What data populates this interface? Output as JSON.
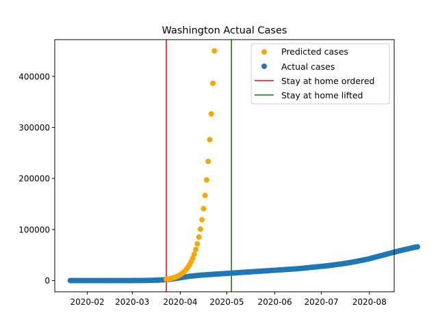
{
  "chart_data": {
    "type": "scatter",
    "title": "Washington Actual Cases",
    "xlabel": "",
    "ylabel": "",
    "x_range": [
      "2020-01-11",
      "2020-08-17"
    ],
    "ylim": [
      -22000,
      472000
    ],
    "x_ticks": [
      "2020-02-01",
      "2020-03-01",
      "2020-04-01",
      "2020-05-01",
      "2020-06-01",
      "2020-07-01",
      "2020-08-01"
    ],
    "x_tick_labels": [
      "2020-02",
      "2020-03",
      "2020-04",
      "2020-05",
      "2020-06",
      "2020-07",
      "2020-08"
    ],
    "y_ticks": [
      0,
      100000,
      200000,
      300000,
      400000
    ],
    "y_tick_labels": [
      "0",
      "100000",
      "200000",
      "300000",
      "400000"
    ],
    "legend": {
      "position": "upper-right",
      "entries": [
        {
          "label": "Predicted cases",
          "kind": "marker",
          "color": "#FFA500"
        },
        {
          "label": "Actual cases",
          "kind": "marker",
          "color": "#1F77B4"
        },
        {
          "label": "Stay at home ordered",
          "kind": "line",
          "color": "#FF0000"
        },
        {
          "label": "Stay at home lifted",
          "kind": "line",
          "color": "#008000"
        }
      ]
    },
    "vlines": [
      {
        "name": "Stay at home ordered",
        "date": "2020-03-23",
        "color": "#FF0000"
      },
      {
        "name": "Stay at home lifted",
        "date": "2020-05-04",
        "color": "#008000"
      }
    ],
    "series": [
      {
        "name": "Predicted cases",
        "color": "#FFA500",
        "start_date": "2020-03-23",
        "values": [
          2500,
          2960,
          3500,
          4140,
          4900,
          5800,
          6860,
          8120,
          9600,
          11360,
          13440,
          15900,
          18800,
          22250,
          26300,
          31100,
          36800,
          43500,
          51500,
          60900,
          72000,
          85200,
          100800,
          119200,
          141000,
          166800,
          197300,
          233400,
          276000,
          326500,
          386300,
          450000
        ]
      },
      {
        "name": "Actual cases",
        "color": "#1F77B4",
        "start_date": "2020-01-21",
        "values": [
          1,
          1,
          1,
          1,
          1,
          1,
          1,
          1,
          1,
          1,
          1,
          1,
          1,
          1,
          1,
          1,
          1,
          1,
          1,
          1,
          1,
          1,
          1,
          1,
          1,
          1,
          1,
          1,
          1,
          1,
          1,
          1,
          1,
          1,
          1,
          1,
          1,
          1,
          1,
          1,
          6,
          14,
          18,
          27,
          39,
          70,
          100,
          140,
          180,
          240,
          290,
          340,
          400,
          480,
          570,
          650,
          770,
          900,
          1050,
          1200,
          1450,
          1700,
          2000,
          2250,
          2550,
          2900,
          3200,
          3600,
          4000,
          4500,
          5000,
          5600,
          6000,
          6500,
          7000,
          7500,
          8000,
          8400,
          8700,
          9000,
          9300,
          9600,
          9900,
          10200,
          10500,
          10800,
          11000,
          11200,
          11400,
          11600,
          11800,
          12000,
          12200,
          12400,
          12600,
          12800,
          13000,
          13200,
          13400,
          13600,
          13800,
          14000,
          14200,
          14400,
          14600,
          14800,
          15000,
          15200,
          15400,
          15600,
          15800,
          16000,
          16200,
          16400,
          16600,
          16800,
          17000,
          17200,
          17400,
          17600,
          17800,
          18000,
          18200,
          18400,
          18600,
          18800,
          19000,
          19200,
          19400,
          19600,
          19800,
          20000,
          20200,
          20400,
          20600,
          20800,
          21000,
          21200,
          21400,
          21600,
          21800,
          22000,
          22200,
          22400,
          22600,
          22800,
          23000,
          23300,
          23600,
          23900,
          24200,
          24500,
          24800,
          25100,
          25400,
          25700,
          26000,
          26300,
          26600,
          26900,
          27200,
          27500,
          27800,
          28100,
          28400,
          28700,
          29000,
          29400,
          29800,
          30200,
          30600,
          31000,
          31400,
          31800,
          32200,
          32600,
          33000,
          33500,
          34000,
          34500,
          35000,
          35500,
          36000,
          36600,
          37200,
          37800,
          38400,
          39000,
          39600,
          40200,
          40800,
          41400,
          42000,
          42800,
          43600,
          44400,
          45200,
          46000,
          46800,
          47600,
          48400,
          49200,
          50000,
          50800,
          51600,
          52400,
          53200,
          54000,
          54800,
          55600,
          56400,
          57200,
          58000,
          58700,
          59400,
          60100,
          60800,
          61500,
          62200,
          62900,
          63600,
          64300,
          65000,
          65500,
          66000
        ]
      }
    ]
  }
}
